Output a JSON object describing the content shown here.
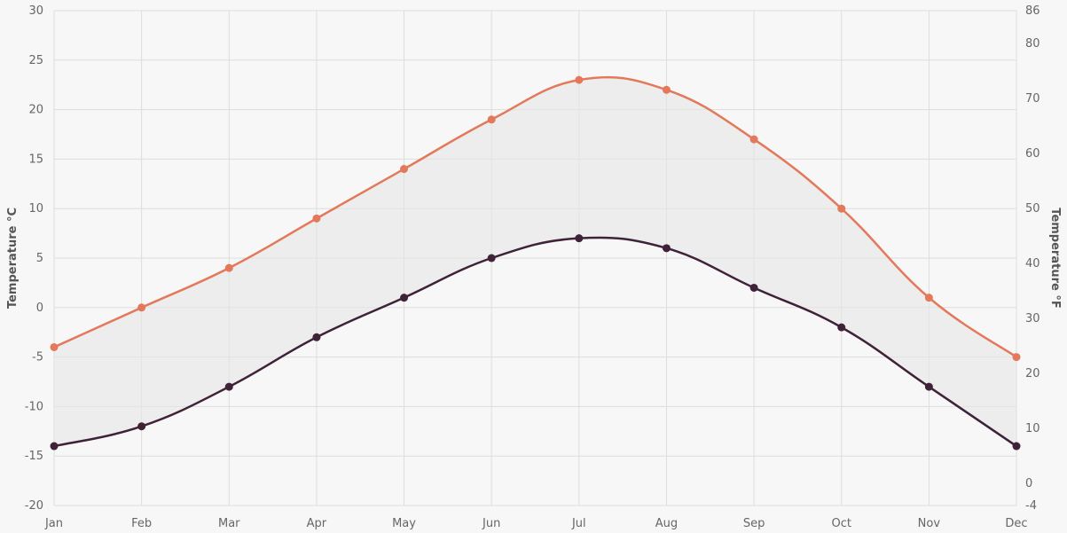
{
  "chart_data": {
    "type": "line",
    "categories": [
      "Jan",
      "Feb",
      "Mar",
      "Apr",
      "May",
      "Jun",
      "Jul",
      "Aug",
      "Sep",
      "Oct",
      "Nov",
      "Dec"
    ],
    "series": [
      {
        "values": [
          -4,
          0,
          4,
          9,
          14,
          19,
          23,
          22,
          17,
          10,
          1,
          -5
        ],
        "color": "#e3795a"
      },
      {
        "values": [
          -14,
          -12,
          -8,
          -3,
          1,
          5,
          7,
          6,
          2,
          -2,
          -8,
          -14
        ],
        "color": "#3f2237"
      }
    ],
    "range_fill_color": "#e6e6e6",
    "ylabel": "Temperature °C",
    "ylim": [
      -20,
      30
    ],
    "yticks": [
      "30",
      "25",
      "20",
      "15",
      "10",
      "5",
      "0",
      "-5",
      "-10",
      "-15",
      "-20"
    ],
    "y2label": "Temperature °F",
    "y2lim": [
      -4,
      86
    ],
    "y2ticks": [
      "86",
      "80",
      "70",
      "60",
      "50",
      "40",
      "30",
      "20",
      "10",
      "0",
      "-4"
    ],
    "grid": true,
    "curve": "smooth"
  }
}
